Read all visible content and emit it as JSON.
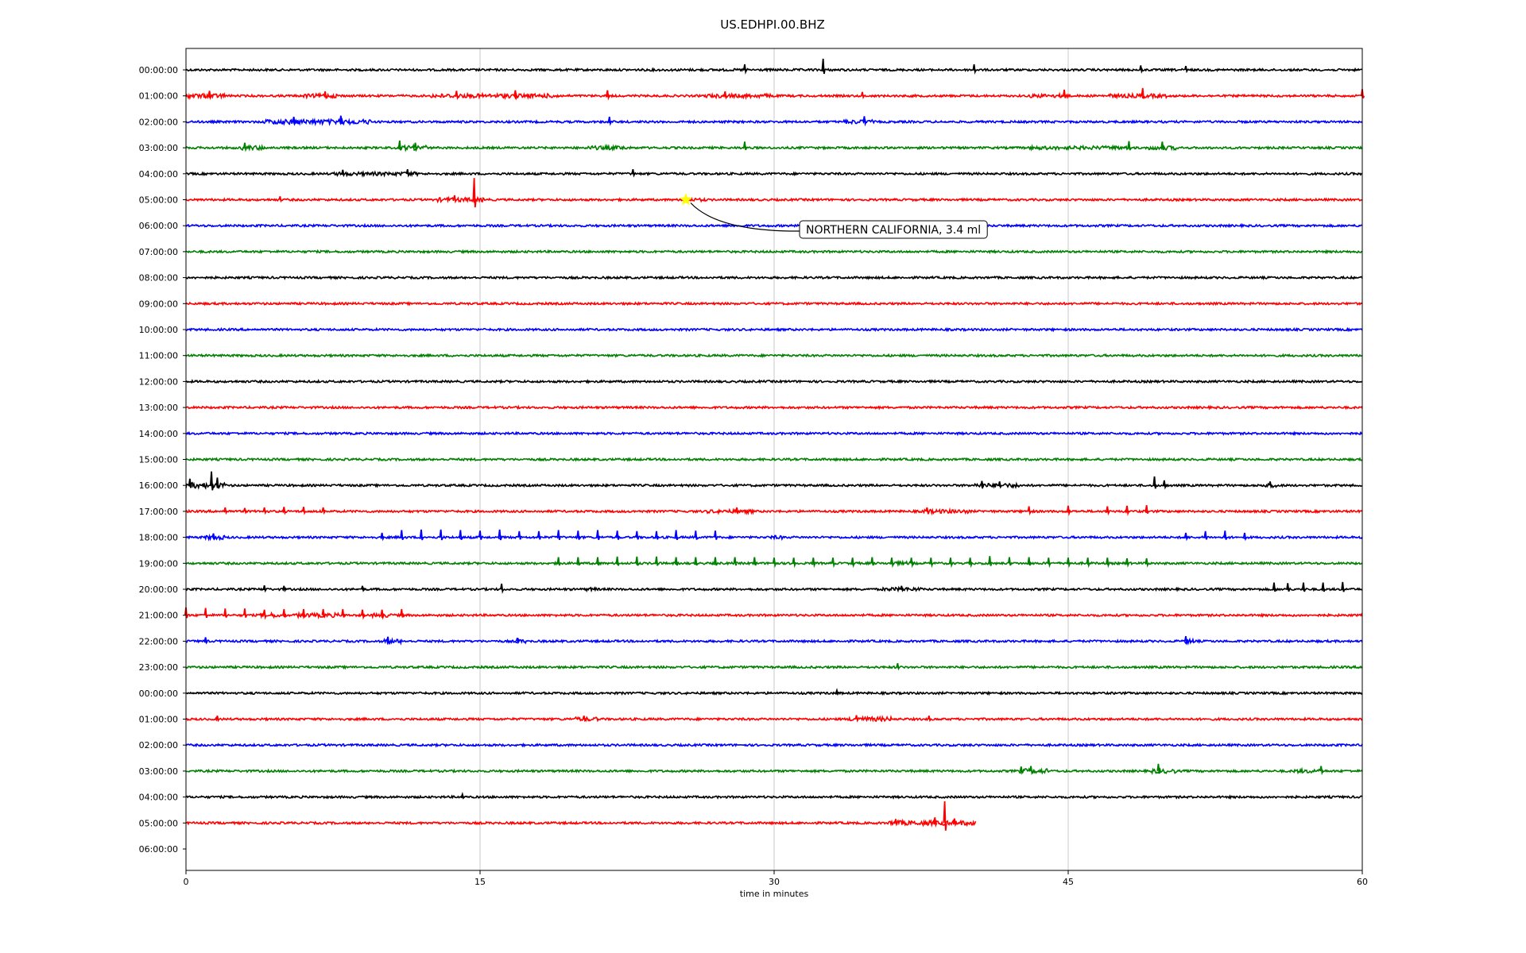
{
  "chart_data": {
    "type": "line",
    "title": "US.EDHPI.00.BHZ",
    "xlabel": "time in minutes",
    "ylabel": "",
    "xlim": [
      0,
      60
    ],
    "xticks": [
      0,
      15,
      30,
      45,
      60
    ],
    "grid": "vertical lines at 15, 30, 45 minutes",
    "trace_colors": [
      "#000000",
      "#ff0000",
      "#0000ff",
      "#008000"
    ],
    "rows": [
      "00:00:00",
      "01:00:00",
      "02:00:00",
      "03:00:00",
      "04:00:00",
      "05:00:00",
      "06:00:00",
      "07:00:00",
      "08:00:00",
      "09:00:00",
      "10:00:00",
      "11:00:00",
      "12:00:00",
      "13:00:00",
      "14:00:00",
      "15:00:00",
      "16:00:00",
      "17:00:00",
      "18:00:00",
      "19:00:00",
      "20:00:00",
      "21:00:00",
      "22:00:00",
      "23:00:00",
      "00:00:00",
      "01:00:00",
      "02:00:00",
      "03:00:00",
      "04:00:00",
      "05:00:00",
      "06:00:00"
    ],
    "trace_end_minutes": [
      60,
      60,
      60,
      60,
      60,
      60,
      60,
      60,
      60,
      60,
      60,
      60,
      60,
      60,
      60,
      60,
      60,
      60,
      60,
      60,
      60,
      60,
      60,
      60,
      60,
      60,
      60,
      60,
      60,
      40.3,
      0
    ],
    "spikes": [
      [
        [
          28.5,
          0.5
        ],
        [
          32.5,
          1.0
        ],
        [
          40.2,
          0.5
        ],
        [
          48.7,
          0.4
        ],
        [
          51,
          0.35
        ]
      ],
      [
        [
          1.2,
          0.45
        ],
        [
          7.1,
          0.4
        ],
        [
          13.8,
          0.45
        ],
        [
          16.8,
          0.5
        ],
        [
          21.5,
          0.5
        ],
        [
          27.5,
          0.4
        ],
        [
          34.5,
          0.35
        ],
        [
          44.8,
          0.55
        ],
        [
          48.8,
          0.7
        ],
        [
          60,
          0.6
        ]
      ],
      [
        [
          5.5,
          0.45
        ],
        [
          7.9,
          0.55
        ],
        [
          21.6,
          0.45
        ],
        [
          34.6,
          0.5
        ]
      ],
      [
        [
          3.0,
          0.45
        ],
        [
          10.9,
          0.65
        ],
        [
          11.7,
          0.45
        ],
        [
          28.5,
          0.55
        ],
        [
          48.1,
          0.6
        ],
        [
          49.8,
          0.55
        ]
      ],
      [
        [
          8.0,
          0.35
        ],
        [
          11.3,
          0.4
        ],
        [
          22.8,
          0.4
        ]
      ],
      [
        [
          4.8,
          0.3
        ],
        [
          13.7,
          0.4
        ],
        [
          14.7,
          1.95
        ]
      ],
      [],
      [],
      [],
      [],
      [],
      [],
      [],
      [],
      [],
      [],
      [
        [
          0.2,
          0.6
        ],
        [
          1.3,
          1.25
        ],
        [
          1.6,
          0.7
        ],
        [
          40.6,
          0.4
        ],
        [
          41.5,
          0.35
        ],
        [
          49.4,
          0.8
        ],
        [
          49.9,
          0.45
        ],
        [
          55.3,
          0.35
        ]
      ],
      [
        [
          2.0,
          0.35
        ],
        [
          3.0,
          0.3
        ],
        [
          4.0,
          0.35
        ],
        [
          5.0,
          0.4
        ],
        [
          6.0,
          0.4
        ],
        [
          7.0,
          0.35
        ],
        [
          28.1,
          0.35
        ],
        [
          37.8,
          0.35
        ],
        [
          43.0,
          0.45
        ],
        [
          45.0,
          0.5
        ],
        [
          47.0,
          0.45
        ],
        [
          48.0,
          0.5
        ],
        [
          49.0,
          0.55
        ]
      ],
      [
        [
          1.4,
          0.35
        ],
        [
          10.0,
          0.4
        ],
        [
          11.0,
          0.65
        ],
        [
          12.0,
          0.7
        ],
        [
          13.0,
          0.7
        ],
        [
          14.0,
          0.65
        ],
        [
          15.0,
          0.6
        ],
        [
          16.0,
          0.7
        ],
        [
          17.0,
          0.55
        ],
        [
          18.0,
          0.55
        ],
        [
          19.0,
          0.65
        ],
        [
          20.0,
          0.6
        ],
        [
          21.0,
          0.65
        ],
        [
          22.0,
          0.6
        ],
        [
          23.0,
          0.55
        ],
        [
          24.0,
          0.55
        ],
        [
          25.0,
          0.65
        ],
        [
          26.0,
          0.6
        ],
        [
          27.0,
          0.6
        ],
        [
          51.0,
          0.4
        ],
        [
          52.0,
          0.55
        ],
        [
          53.0,
          0.6
        ],
        [
          54.0,
          0.4
        ]
      ],
      [
        [
          19.0,
          0.55
        ],
        [
          20.0,
          0.55
        ],
        [
          21.0,
          0.55
        ],
        [
          22.0,
          0.6
        ],
        [
          23.0,
          0.6
        ],
        [
          24.0,
          0.6
        ],
        [
          25.0,
          0.55
        ],
        [
          26.0,
          0.55
        ],
        [
          27.0,
          0.55
        ],
        [
          28.0,
          0.55
        ],
        [
          29.0,
          0.55
        ],
        [
          30.0,
          0.5
        ],
        [
          31.0,
          0.5
        ],
        [
          32.0,
          0.5
        ],
        [
          33.0,
          0.5
        ],
        [
          34.0,
          0.5
        ],
        [
          35.0,
          0.55
        ],
        [
          36.0,
          0.5
        ],
        [
          37.0,
          0.5
        ],
        [
          38.0,
          0.5
        ],
        [
          39.0,
          0.5
        ],
        [
          40.0,
          0.5
        ],
        [
          41.0,
          0.65
        ],
        [
          42.0,
          0.55
        ],
        [
          43.0,
          0.55
        ],
        [
          44.0,
          0.5
        ],
        [
          45.0,
          0.5
        ],
        [
          46.0,
          0.5
        ],
        [
          47.0,
          0.5
        ],
        [
          48.0,
          0.45
        ],
        [
          49.0,
          0.45
        ]
      ],
      [
        [
          4.0,
          0.35
        ],
        [
          5.0,
          0.3
        ],
        [
          9.0,
          0.3
        ],
        [
          16.1,
          0.5
        ],
        [
          36.5,
          0.3
        ],
        [
          55.5,
          0.6
        ],
        [
          56.2,
          0.55
        ],
        [
          57.0,
          0.6
        ],
        [
          58.0,
          0.6
        ],
        [
          59.0,
          0.65
        ]
      ],
      [
        [
          0.0,
          0.7
        ],
        [
          1.0,
          0.65
        ],
        [
          2.0,
          0.6
        ],
        [
          3.0,
          0.6
        ],
        [
          4.0,
          0.5
        ],
        [
          5.0,
          0.55
        ],
        [
          6.0,
          0.55
        ],
        [
          7.0,
          0.55
        ],
        [
          8.0,
          0.55
        ],
        [
          9.0,
          0.5
        ],
        [
          10.0,
          0.5
        ],
        [
          11.0,
          0.55
        ]
      ],
      [
        [
          1.0,
          0.35
        ],
        [
          10.3,
          0.4
        ],
        [
          16.9,
          0.3
        ],
        [
          51.0,
          0.45
        ]
      ],
      [
        [
          36.3,
          0.35
        ]
      ],
      [
        [
          33.2,
          0.25
        ]
      ],
      [
        [
          1.6,
          0.3
        ],
        [
          20.3,
          0.3
        ],
        [
          34.2,
          0.35
        ],
        [
          37.9,
          0.3
        ]
      ],
      [],
      [
        [
          42.6,
          0.4
        ],
        [
          43.1,
          0.45
        ],
        [
          49.6,
          0.65
        ],
        [
          57.9,
          0.45
        ]
      ],
      [
        [
          14.1,
          0.25
        ]
      ],
      [
        [
          36.2,
          0.35
        ],
        [
          38.2,
          0.5
        ],
        [
          38.7,
          1.95
        ],
        [
          39.2,
          0.4
        ]
      ],
      []
    ],
    "bursts": [
      [
        [
          23.0,
          34.0,
          0.9
        ]
      ],
      [
        [
          0.0,
          2.0,
          1.7
        ],
        [
          6.0,
          8.0,
          1.5
        ],
        [
          12.5,
          19.0,
          1.6
        ],
        [
          26.5,
          30.0,
          1.5
        ],
        [
          43.0,
          45.0,
          1.4
        ],
        [
          47.0,
          50.0,
          1.5
        ]
      ],
      [
        [
          4.0,
          9.5,
          1.9
        ],
        [
          33.5,
          35.0,
          1.6
        ]
      ],
      [
        [
          2.8,
          4.0,
          1.7
        ],
        [
          11.0,
          12.3,
          1.9
        ],
        [
          20.5,
          22.5,
          1.5
        ],
        [
          43.0,
          48.0,
          1.4
        ],
        [
          49.0,
          50.5,
          1.6
        ]
      ],
      [
        [
          7.5,
          11.8,
          1.4
        ]
      ],
      [
        [
          12.8,
          15.2,
          1.6
        ],
        [
          25.3,
          26.5,
          1.3
        ]
      ],
      [],
      [],
      [],
      [],
      [],
      [],
      [],
      [],
      [],
      [],
      [
        [
          0.0,
          2.0,
          2.2
        ],
        [
          40.2,
          42.5,
          1.6
        ],
        [
          54.8,
          55.8,
          1.5
        ]
      ],
      [
        [
          26.5,
          29.0,
          1.4
        ],
        [
          37.5,
          40.0,
          1.5
        ]
      ],
      [
        [
          1.0,
          2.0,
          1.6
        ],
        [
          29.8,
          30.5,
          1.4
        ]
      ],
      [
        [
          36.0,
          37.0,
          1.3
        ]
      ],
      [
        [
          20.4,
          21.0,
          1.3
        ],
        [
          35.5,
          37.5,
          1.4
        ]
      ],
      [
        [
          3.8,
          4.8,
          1.7
        ],
        [
          5.5,
          7.8,
          1.6
        ],
        [
          9.5,
          10.5,
          1.5
        ]
      ],
      [
        [
          10.0,
          11.0,
          1.6
        ],
        [
          16.8,
          17.4,
          1.5
        ],
        [
          50.8,
          51.5,
          1.8
        ]
      ],
      [],
      [],
      [
        [
          19.8,
          21.0,
          1.5
        ],
        [
          33.8,
          36.0,
          1.7
        ]
      ],
      [],
      [
        [
          42.5,
          44.0,
          1.8
        ],
        [
          49.2,
          50.5,
          1.7
        ],
        [
          56.5,
          58.0,
          1.5
        ]
      ],
      [],
      [
        [
          35.8,
          40.3,
          1.8
        ]
      ],
      []
    ],
    "annotation": {
      "text": "NORTHERN CALIFORNIA, 3.4 ml",
      "row": 5,
      "minute": 25.5,
      "marker": "star",
      "marker_color": "#ffff00"
    }
  }
}
